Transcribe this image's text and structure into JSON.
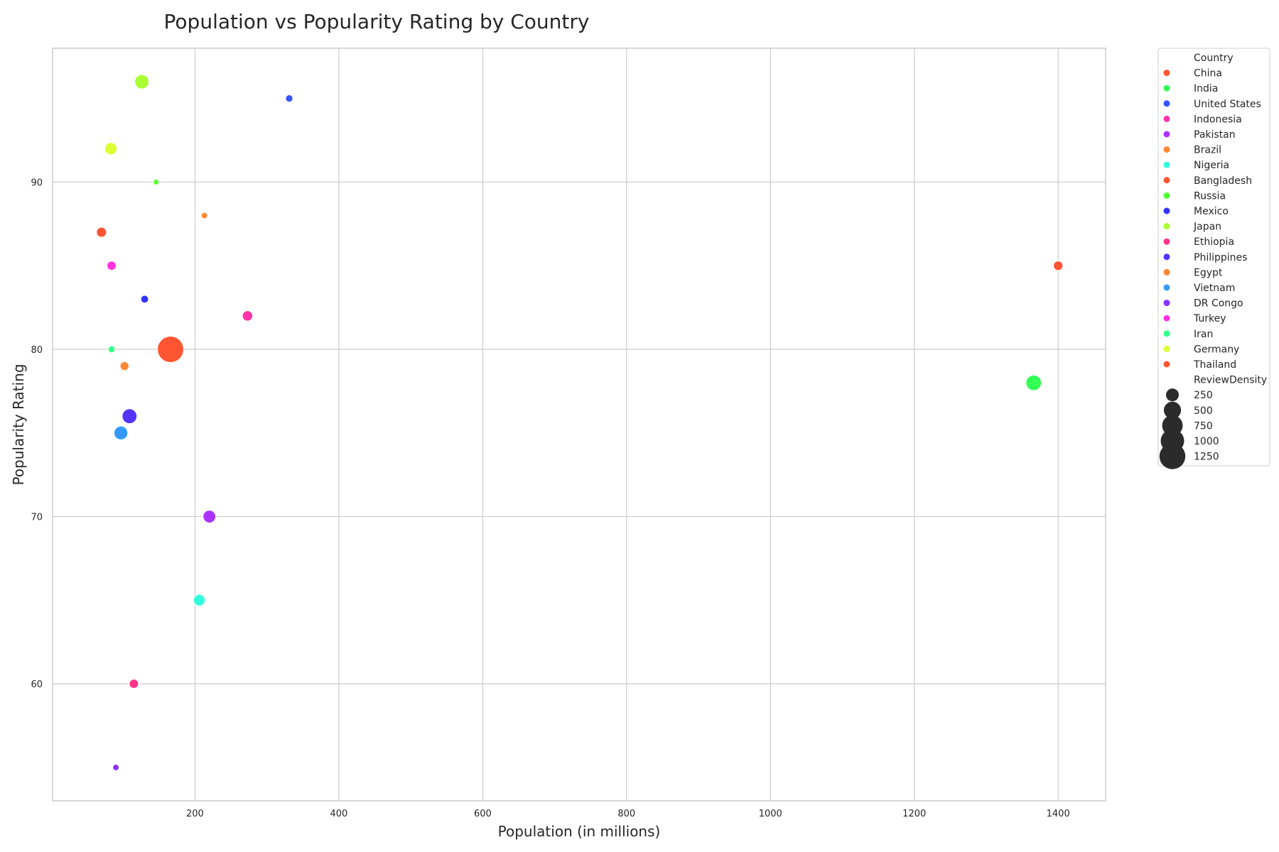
{
  "chart_data": {
    "type": "scatter",
    "title": "Population vs Popularity Rating by Country",
    "xlabel": "Population (in millions)",
    "ylabel": "Popularity Rating",
    "xlim": [
      2,
      1466
    ],
    "ylim": [
      53,
      98
    ],
    "xticks": [
      200,
      400,
      600,
      800,
      1000,
      1200,
      1400
    ],
    "yticks": [
      60,
      70,
      80,
      90
    ],
    "grid": true,
    "legend_position": "outside-right",
    "hue_title": "Country",
    "size_title": "ReviewDensity",
    "size_entries": [
      250,
      500,
      750,
      1000,
      1250
    ],
    "points": [
      {
        "country": "China",
        "color": "#ff5533",
        "x": 1400,
        "y": 85,
        "density": 120
      },
      {
        "country": "India",
        "color": "#33ff55",
        "x": 1366,
        "y": 78,
        "density": 400
      },
      {
        "country": "United States",
        "color": "#3355ff",
        "x": 331,
        "y": 95,
        "density": 60
      },
      {
        "country": "Indonesia",
        "color": "#ff33aa",
        "x": 273,
        "y": 82,
        "density": 150
      },
      {
        "country": "Pakistan",
        "color": "#aa33ff",
        "x": 220,
        "y": 70,
        "density": 250
      },
      {
        "country": "Brazil",
        "color": "#ff8833",
        "x": 213,
        "y": 88,
        "density": 40
      },
      {
        "country": "Nigeria",
        "color": "#33ffdd",
        "x": 206,
        "y": 65,
        "density": 200
      },
      {
        "country": "Bangladesh",
        "color": "#ff5533",
        "x": 166,
        "y": 80,
        "density": 1300
      },
      {
        "country": "Russia",
        "color": "#55ff33",
        "x": 146,
        "y": 90,
        "density": 30
      },
      {
        "country": "Mexico",
        "color": "#3333ff",
        "x": 130,
        "y": 83,
        "density": 70
      },
      {
        "country": "Japan",
        "color": "#aaff33",
        "x": 126,
        "y": 96,
        "density": 330
      },
      {
        "country": "Ethiopia",
        "color": "#ff3388",
        "x": 115,
        "y": 60,
        "density": 110
      },
      {
        "country": "Philippines",
        "color": "#5533ff",
        "x": 109,
        "y": 76,
        "density": 360
      },
      {
        "country": "Egypt",
        "color": "#ff8833",
        "x": 102,
        "y": 79,
        "density": 100
      },
      {
        "country": "Vietnam",
        "color": "#3399ff",
        "x": 97,
        "y": 75,
        "density": 300
      },
      {
        "country": "DR Congo",
        "color": "#8833ff",
        "x": 90,
        "y": 55,
        "density": 40
      },
      {
        "country": "Turkey",
        "color": "#ff33dd",
        "x": 84,
        "y": 85,
        "density": 110
      },
      {
        "country": "Iran",
        "color": "#33ff88",
        "x": 84,
        "y": 80,
        "density": 50
      },
      {
        "country": "Germany",
        "color": "#ddff33",
        "x": 83,
        "y": 92,
        "density": 230
      },
      {
        "country": "Thailand",
        "color": "#ff5533",
        "x": 70,
        "y": 87,
        "density": 140
      }
    ]
  }
}
